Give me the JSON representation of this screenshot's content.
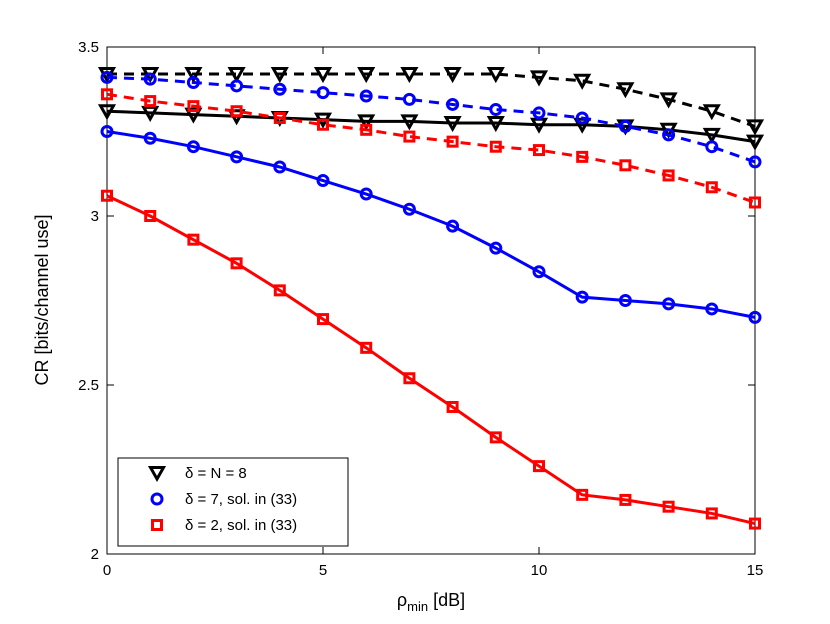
{
  "chart_data": {
    "type": "line",
    "title": "",
    "xlabel": {
      "main": "ρ",
      "sub": "min",
      "unit": " [dB]"
    },
    "ylabel": "CR [bits/channel use]",
    "xlim": [
      0,
      15
    ],
    "ylim": [
      2,
      3.5
    ],
    "xticks": [
      0,
      5,
      10,
      15
    ],
    "xtick_labels": [
      "0",
      "5",
      "10",
      "15"
    ],
    "yticks": [
      2,
      2.5,
      3,
      3.5
    ],
    "ytick_labels": [
      "2",
      "2.5",
      "3",
      "3.5"
    ],
    "grid": false,
    "legend_position": "bottom-left",
    "x": [
      0,
      1,
      2,
      3,
      4,
      5,
      6,
      7,
      8,
      9,
      10,
      11,
      12,
      13,
      14,
      15
    ],
    "series": [
      {
        "legend": "δ = N = 8",
        "color": "#000000",
        "marker": "triangle-down",
        "linestyle": "solid",
        "values": [
          3.31,
          3.305,
          3.3,
          3.295,
          3.29,
          3.285,
          3.28,
          3.28,
          3.275,
          3.275,
          3.27,
          3.27,
          3.265,
          3.255,
          3.24,
          3.22
        ]
      },
      {
        "color": "#000000",
        "marker": "triangle-down",
        "linestyle": "dashed",
        "values": [
          3.42,
          3.42,
          3.42,
          3.42,
          3.42,
          3.42,
          3.42,
          3.42,
          3.42,
          3.42,
          3.41,
          3.4,
          3.375,
          3.345,
          3.31,
          3.265
        ]
      },
      {
        "legend": "δ = 7, sol. in (33)",
        "color": "#0000ff",
        "marker": "circle",
        "linestyle": "solid",
        "values": [
          3.25,
          3.23,
          3.205,
          3.175,
          3.145,
          3.105,
          3.065,
          3.02,
          2.97,
          2.905,
          2.835,
          2.76,
          2.75,
          2.74,
          2.725,
          2.7
        ]
      },
      {
        "color": "#0000ff",
        "marker": "circle",
        "linestyle": "dashed",
        "values": [
          3.41,
          3.405,
          3.395,
          3.385,
          3.375,
          3.365,
          3.355,
          3.345,
          3.33,
          3.315,
          3.305,
          3.29,
          3.265,
          3.24,
          3.205,
          3.16
        ]
      },
      {
        "legend": "δ = 2, sol. in (33)",
        "color": "#ff0000",
        "marker": "square",
        "linestyle": "solid",
        "values": [
          3.06,
          3.0,
          2.93,
          2.86,
          2.78,
          2.695,
          2.61,
          2.52,
          2.435,
          2.345,
          2.26,
          2.175,
          2.16,
          2.14,
          2.12,
          2.09
        ]
      },
      {
        "color": "#ff0000",
        "marker": "square",
        "linestyle": "dashed",
        "values": [
          3.36,
          3.34,
          3.325,
          3.31,
          3.29,
          3.27,
          3.255,
          3.235,
          3.22,
          3.205,
          3.195,
          3.175,
          3.15,
          3.12,
          3.085,
          3.04
        ]
      }
    ]
  }
}
